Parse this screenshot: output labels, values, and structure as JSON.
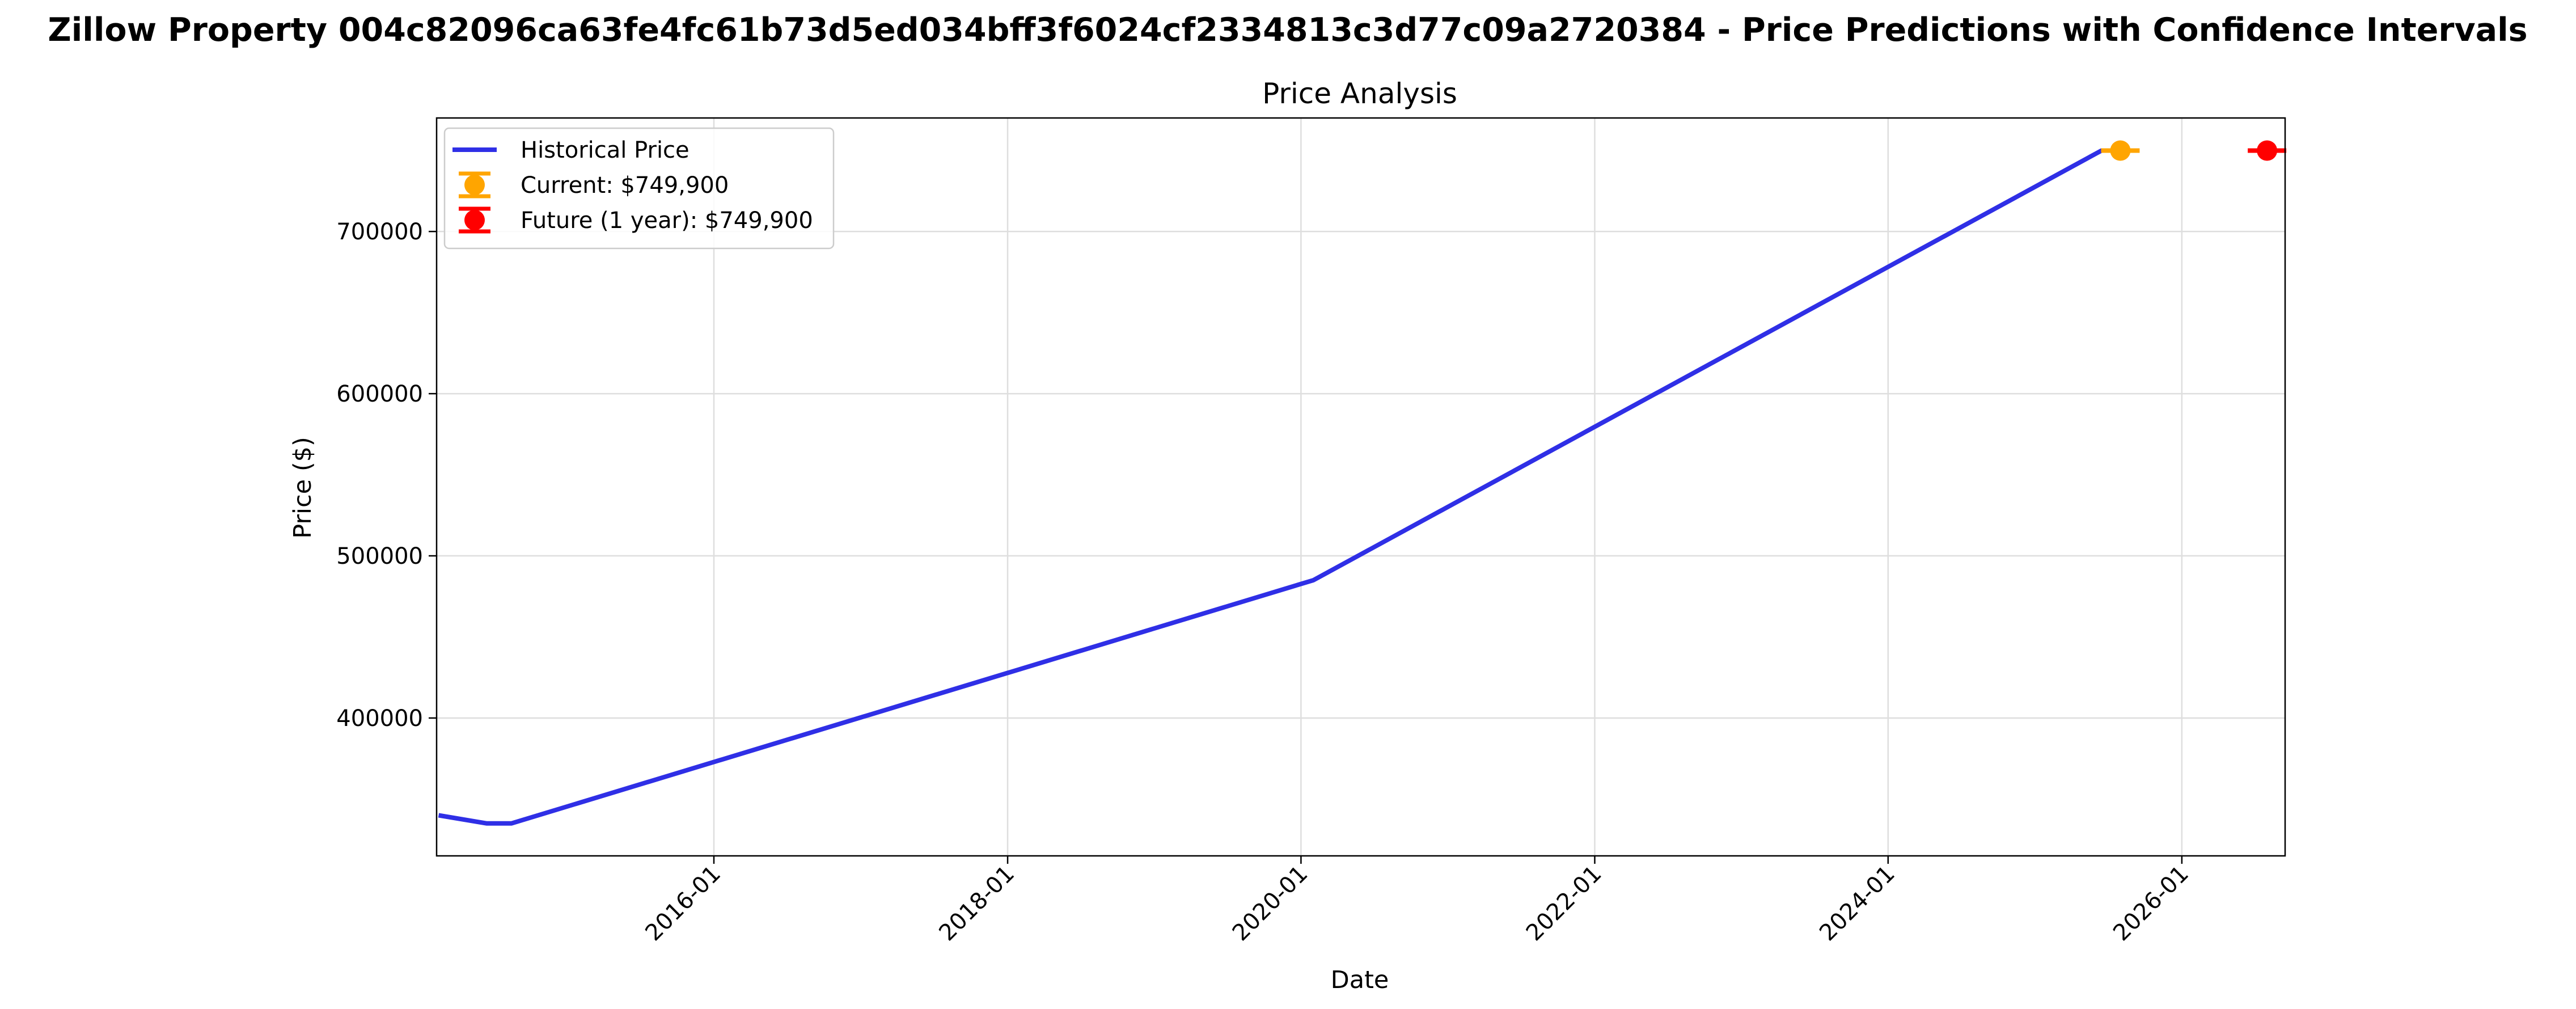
{
  "figure": {
    "suptitle": "Zillow Property 004c82096ca63fe4fc61b73d5ed034bff3f6024cf2334813c3d77c09a2720384 - Price Predictions with Confidence Intervals"
  },
  "chart_data": {
    "type": "line",
    "title": "Price Analysis",
    "xlabel": "Date",
    "ylabel": "Price ($)",
    "xlim": [
      "2014-02-10",
      "2026-09-15"
    ],
    "ylim": [
      315000,
      770000
    ],
    "grid": true,
    "legend_position": "upper-left",
    "x_ticks": [
      "2016-01",
      "2018-01",
      "2020-01",
      "2022-01",
      "2024-01",
      "2026-01"
    ],
    "y_ticks": [
      400000,
      500000,
      600000,
      700000
    ],
    "series": [
      {
        "name": "Historical Price",
        "kind": "line",
        "color": "#2f2fe6",
        "x": [
          "2014-02-15",
          "2014-06-15",
          "2014-08-15",
          "2020-02-01",
          "2025-06-15",
          "2025-07-20"
        ],
        "y": [
          340000,
          335000,
          335000,
          485000,
          749900,
          749900
        ]
      },
      {
        "name": "Current: $749,900",
        "kind": "errorbar",
        "color": "#ffa500",
        "x": [
          "2025-08-01"
        ],
        "y": [
          749900
        ],
        "err": [
          0
        ]
      },
      {
        "name": "Future (1 year): $749,900",
        "kind": "errorbar",
        "color": "#ff0000",
        "x": [
          "2026-08-01"
        ],
        "y": [
          749900
        ],
        "err": [
          0
        ]
      }
    ]
  }
}
